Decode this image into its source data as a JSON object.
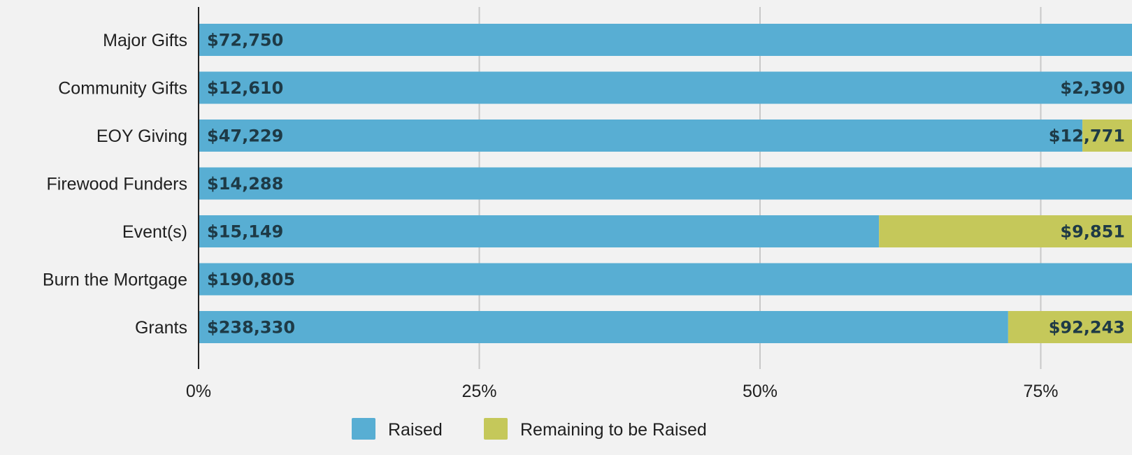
{
  "chart_data": {
    "type": "bar",
    "orientation": "horizontal",
    "stacked": true,
    "normalized": "percent",
    "categories": [
      "Major Gifts",
      "Community Gifts",
      "EOY Giving",
      "Firewood Funders",
      "Event(s)",
      "Burn the Mortgage",
      "Grants"
    ],
    "series": [
      {
        "name": "Raised",
        "color": "#58aed3",
        "values": [
          72750,
          12610,
          47229,
          14288,
          15149,
          190805,
          238330
        ],
        "labels": [
          "$72,750",
          "$12,610",
          "$47,229",
          "$14,288",
          "$15,149",
          "$190,805",
          "$238,330"
        ]
      },
      {
        "name": "Remaining to be Raised",
        "color": "#c5c85a",
        "values": [
          0,
          2390,
          12771,
          0,
          9851,
          0,
          92243
        ],
        "labels": [
          "",
          "$2,390",
          "$12,771",
          "",
          "$9,851",
          "",
          "$92,243"
        ]
      }
    ],
    "x_ticks": [
      "0%",
      "25%",
      "50%",
      "75%"
    ],
    "x_tick_values": [
      0,
      25,
      50,
      75
    ],
    "xlim": [
      0,
      100
    ],
    "grid": true,
    "legend": "bottom",
    "title": "",
    "xlabel": "",
    "ylabel": ""
  }
}
